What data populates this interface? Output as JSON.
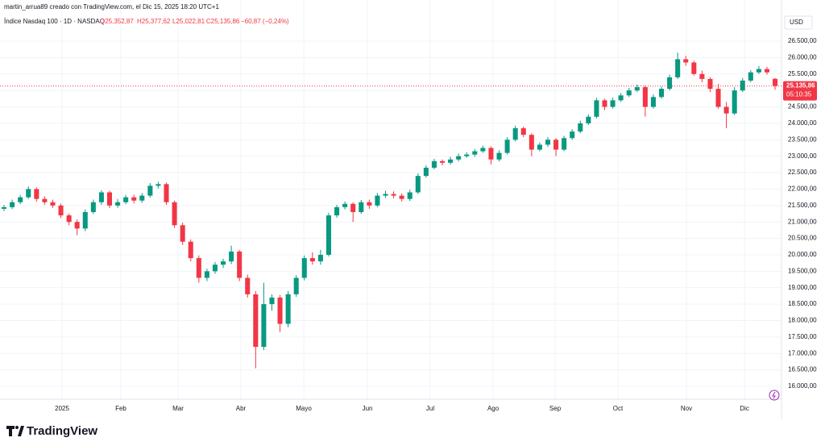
{
  "chart_data": {
    "type": "candlestick",
    "attribution": "martin_arrua89 creado con TradingView.com, el Dic 15, 2025 18:20 UTC+1",
    "symbol": "Índice Nasdaq 100 · 1D · NASDAQ",
    "ohlc_text": [
      "O25,352,87",
      "H25,377,62",
      "L25,022,81",
      "C25,135,86",
      "−60,87 (−0,24%)"
    ],
    "currency": "USD",
    "countdown": "05:10:35",
    "brand": "TradingView",
    "last_price": {
      "value": 25135.86,
      "label": "25.135,86"
    },
    "up_color": "#089981",
    "down_color": "#f23645",
    "grid": true,
    "xlim": [
      -0.5,
      95.79
    ],
    "xticks": [
      {
        "value": 7.15,
        "label": "2025"
      },
      {
        "value": 14.39,
        "label": "Feb"
      },
      {
        "value": 21.44,
        "label": "Mar"
      },
      {
        "value": 29.18,
        "label": "Abr"
      },
      {
        "value": 36.93,
        "label": "Mayo"
      },
      {
        "value": 44.77,
        "label": "Jun"
      },
      {
        "value": 52.51,
        "label": "Jul"
      },
      {
        "value": 60.26,
        "label": "Ago"
      },
      {
        "value": 67.9,
        "label": "Sep"
      },
      {
        "value": 75.64,
        "label": "Oct"
      },
      {
        "value": 84.08,
        "label": "Nov"
      },
      {
        "value": 91.23,
        "label": "Dic"
      }
    ],
    "ylim": [
      15240,
      27751
    ],
    "yticks": [
      {
        "value": 16000,
        "label": "16.000,00"
      },
      {
        "value": 16500,
        "label": "16.500,00"
      },
      {
        "value": 17000,
        "label": "17.000,00"
      },
      {
        "value": 17500,
        "label": "17.500,00"
      },
      {
        "value": 18000,
        "label": "18.000,00"
      },
      {
        "value": 18500,
        "label": "18.500,00"
      },
      {
        "value": 19000,
        "label": "19.000,00"
      },
      {
        "value": 19500,
        "label": "19.500,00"
      },
      {
        "value": 20000,
        "label": "20.000,00"
      },
      {
        "value": 20500,
        "label": "20.500,00"
      },
      {
        "value": 21000,
        "label": "21.000,00"
      },
      {
        "value": 21500,
        "label": "21.500,00"
      },
      {
        "value": 22000,
        "label": "22.000,00"
      },
      {
        "value": 22500,
        "label": "22.500,00"
      },
      {
        "value": 23000,
        "label": "23.000,00"
      },
      {
        "value": 23500,
        "label": "23.500,00"
      },
      {
        "value": 24000,
        "label": "24.000,00"
      },
      {
        "value": 24500,
        "label": "24.500,00"
      },
      {
        "value": 25000,
        "label": "25.000,00"
      },
      {
        "value": 25500,
        "label": "25.500,00"
      },
      {
        "value": 26000,
        "label": "26.000,00"
      },
      {
        "value": 26500,
        "label": "26.500,00"
      }
    ],
    "open": [
      21400,
      21450,
      21600,
      21750,
      22000,
      21700,
      21600,
      21500,
      21200,
      21000,
      20800,
      21300,
      21600,
      21900,
      21500,
      21600,
      21750,
      21650,
      21800,
      22100,
      22150,
      21600,
      20900,
      20400,
      19900,
      19300,
      19500,
      19700,
      19800,
      20100,
      19300,
      18800,
      17200,
      18500,
      18700,
      17900,
      18800,
      19300,
      19900,
      19800,
      20000,
      21200,
      21450,
      21550,
      21300,
      21600,
      21500,
      21800,
      21850,
      21800,
      21700,
      21900,
      22400,
      22650,
      22850,
      22800,
      22900,
      23000,
      23050,
      23150,
      23250,
      22900,
      23100,
      23500,
      23850,
      23650,
      23200,
      23350,
      23500,
      23200,
      23550,
      23750,
      24000,
      24200,
      24700,
      24500,
      24700,
      24850,
      25000,
      25100,
      24500,
      24800,
      25050,
      25400,
      25950,
      25850,
      25500,
      25350,
      25050,
      24500,
      24300,
      25000,
      25300,
      25550,
      25650,
      25352.87
    ],
    "high": [
      21520,
      21680,
      21820,
      22080,
      22050,
      21780,
      21680,
      21560,
      21260,
      21080,
      21380,
      21680,
      21960,
      21950,
      21700,
      21820,
      21830,
      21880,
      22180,
      22220,
      22200,
      21650,
      20980,
      20470,
      19980,
      19580,
      19780,
      19880,
      20280,
      20150,
      19400,
      18900,
      19150,
      18800,
      18780,
      18900,
      19380,
      19980,
      20080,
      20150,
      21280,
      21520,
      21620,
      21600,
      21670,
      21680,
      21880,
      21950,
      21930,
      21870,
      21980,
      22480,
      22720,
      22920,
      22900,
      22980,
      23080,
      23120,
      23220,
      23320,
      23300,
      23180,
      23580,
      23930,
      23900,
      23700,
      23420,
      23580,
      23550,
      23620,
      23820,
      24080,
      24270,
      24780,
      24750,
      24780,
      24920,
      25080,
      25180,
      25150,
      24880,
      25120,
      25480,
      26150,
      26050,
      25900,
      25600,
      25400,
      25200,
      24650,
      25100,
      25380,
      25620,
      25740,
      25720,
      25377.62
    ],
    "low": [
      21330,
      21390,
      21540,
      21700,
      21620,
      21520,
      21430,
      21120,
      20900,
      20600,
      20720,
      21240,
      21520,
      21420,
      21430,
      21540,
      21560,
      21580,
      21740,
      22020,
      21520,
      20820,
      20300,
      19800,
      19150,
      19200,
      19420,
      19600,
      19720,
      19200,
      18700,
      16550,
      17100,
      18300,
      17650,
      17800,
      18720,
      19220,
      19700,
      19700,
      19950,
      21130,
      21380,
      21000,
      21250,
      21400,
      21450,
      21730,
      21720,
      21620,
      21640,
      21850,
      22350,
      22600,
      22720,
      22740,
      22840,
      22950,
      22980,
      23100,
      22750,
      22840,
      23050,
      23450,
      23580,
      23000,
      23150,
      23280,
      23000,
      23150,
      23500,
      23700,
      23950,
      24150,
      24400,
      24450,
      24650,
      24800,
      24950,
      24200,
      24450,
      24750,
      25000,
      25350,
      25750,
      25450,
      25250,
      24950,
      24450,
      23850,
      24250,
      24950,
      25250,
      25500,
      25480,
      25022.81
    ],
    "close": [
      21450,
      21600,
      21750,
      22000,
      21700,
      21600,
      21500,
      21200,
      21000,
      20800,
      21300,
      21600,
      21900,
      21500,
      21600,
      21750,
      21650,
      21800,
      22100,
      22150,
      21600,
      20900,
      20400,
      19900,
      19300,
      19500,
      19700,
      19800,
      20100,
      19300,
      18800,
      17200,
      18500,
      18700,
      17900,
      18800,
      19300,
      19900,
      19800,
      20000,
      21200,
      21450,
      21550,
      21300,
      21600,
      21500,
      21800,
      21850,
      21800,
      21700,
      21900,
      22400,
      22650,
      22850,
      22800,
      22900,
      23000,
      23050,
      23150,
      23250,
      22900,
      23100,
      23500,
      23850,
      23650,
      23200,
      23350,
      23500,
      23200,
      23550,
      23750,
      24000,
      24200,
      24700,
      24500,
      24700,
      24850,
      25000,
      25100,
      24500,
      24800,
      25050,
      25400,
      25950,
      25850,
      25500,
      25350,
      25050,
      24500,
      24300,
      25000,
      25300,
      25550,
      25650,
      25550,
      25135.86
    ]
  }
}
